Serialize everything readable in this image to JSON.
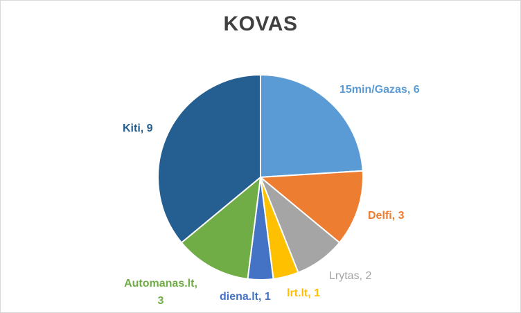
{
  "chart_data": {
    "type": "pie",
    "title": "KOVAS",
    "slices": [
      {
        "name": "15min/Gazas",
        "value": 6,
        "color": "#5B9BD5",
        "label": "15min/Gazas, 6"
      },
      {
        "name": "Delfi",
        "value": 3,
        "color": "#ED7D31",
        "label": "Delfi, 3"
      },
      {
        "name": "Lrytas",
        "value": 2,
        "color": "#A5A5A5",
        "label": "Lrytas, 2"
      },
      {
        "name": "lrt.lt",
        "value": 1,
        "color": "#FFC000",
        "label": "lrt.lt, 1"
      },
      {
        "name": "diena.lt",
        "value": 1,
        "color": "#4472C4",
        "label": "diena.lt, 1"
      },
      {
        "name": "Automanas.lt",
        "value": 3,
        "color": "#70AD47",
        "label_lines": [
          "Automanas.lt,",
          "3"
        ]
      },
      {
        "name": "Kiti",
        "value": 9,
        "color": "#255E91",
        "label": "Kiti, 9"
      }
    ]
  }
}
